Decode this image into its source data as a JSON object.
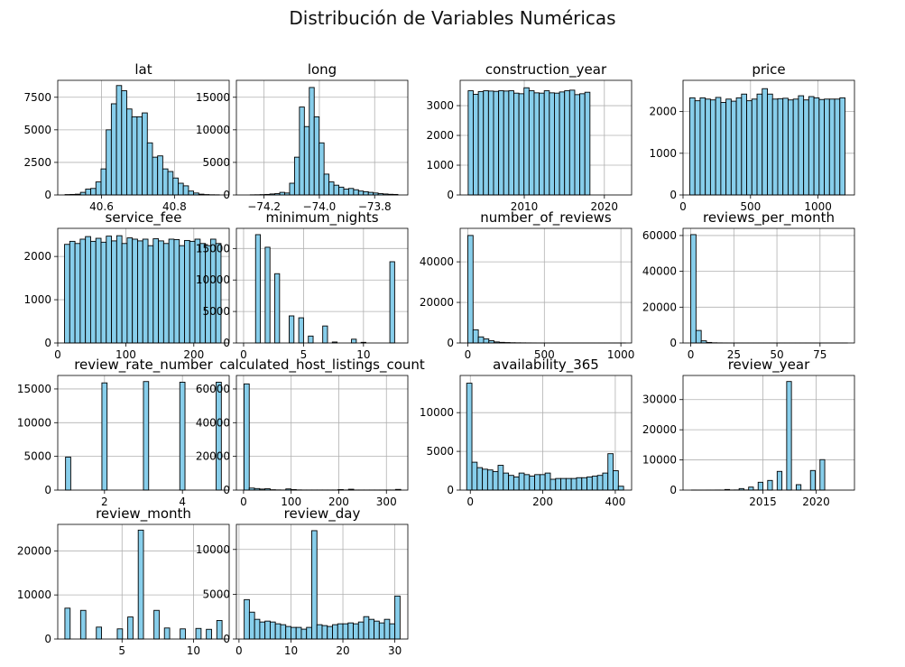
{
  "figure": {
    "title": "Distribución de Variables Numéricas",
    "bar_color": "#87ceeb",
    "edge_color": "#000000",
    "grid_color": "#b0b0b0"
  },
  "chart_data": [
    {
      "type": "bar",
      "title": "lat",
      "grid": true,
      "xlim": [
        40.48,
        40.95
      ],
      "ylim": [
        0,
        8800
      ],
      "xticks": [
        40.6,
        40.8
      ],
      "xtick_labels": [
        "40.6",
        "40.8"
      ],
      "yticks": [
        0,
        2500,
        5000,
        7500
      ],
      "ytick_labels": [
        "0",
        "2500",
        "5000",
        "7500"
      ],
      "bins": {
        "start": 40.5,
        "width": 0.0141,
        "values": [
          30,
          40,
          60,
          200,
          450,
          500,
          1000,
          2000,
          5000,
          7000,
          8400,
          8000,
          6600,
          6000,
          6000,
          6300,
          4000,
          2900,
          3000,
          2000,
          1800,
          1300,
          900,
          700,
          300,
          150,
          60,
          30,
          15,
          10
        ]
      }
    },
    {
      "type": "bar",
      "title": "long",
      "grid": true,
      "xlim": [
        -74.3,
        -73.68
      ],
      "ylim": [
        0,
        17600
      ],
      "xticks": [
        -74.2,
        -74.0,
        -73.8
      ],
      "xtick_labels": [
        "−74.2",
        "−74.0",
        "−73.8"
      ],
      "yticks": [
        0,
        5000,
        10000,
        15000
      ],
      "ytick_labels": [
        "0",
        "5000",
        "10000",
        "15000"
      ],
      "bins": {
        "start": -74.25,
        "width": 0.0178,
        "values": [
          20,
          30,
          50,
          80,
          150,
          200,
          400,
          300,
          1800,
          5800,
          13500,
          10500,
          16500,
          12000,
          8000,
          3200,
          2000,
          1500,
          1200,
          900,
          1000,
          800,
          600,
          500,
          400,
          300,
          200,
          150,
          100,
          80
        ]
      }
    },
    {
      "type": "bar",
      "title": "construction_year",
      "grid": true,
      "xlim": [
        2002,
        2023.4
      ],
      "ylim": [
        0,
        3850
      ],
      "xticks": [
        2010,
        2020
      ],
      "xtick_labels": [
        "2010",
        "2020"
      ],
      "yticks": [
        0,
        1000,
        2000,
        3000
      ],
      "ytick_labels": [
        "0",
        "1000",
        "2000",
        "3000"
      ],
      "bins": {
        "start": 2003,
        "width": 0.6333,
        "values": [
          3500,
          3380,
          3470,
          3500,
          3490,
          3480,
          3500,
          3490,
          3500,
          3420,
          3400,
          3600,
          3500,
          3430,
          3420,
          3500,
          3430,
          3420,
          3460,
          3500,
          3520,
          3370,
          3400,
          3450
        ]
      }
    },
    {
      "type": "bar",
      "title": "price",
      "grid": true,
      "xlim": [
        0,
        1270
      ],
      "ylim": [
        0,
        2750
      ],
      "xticks": [
        0,
        500,
        1000
      ],
      "xtick_labels": [
        "0",
        "500",
        "1000"
      ],
      "yticks": [
        0,
        1000,
        2000
      ],
      "ytick_labels": [
        "0",
        "1000",
        "2000"
      ],
      "bins": {
        "start": 50,
        "width": 38.33,
        "values": [
          2330,
          2260,
          2330,
          2300,
          2280,
          2340,
          2220,
          2300,
          2250,
          2330,
          2420,
          2260,
          2300,
          2420,
          2550,
          2420,
          2300,
          2310,
          2320,
          2280,
          2300,
          2380,
          2280,
          2360,
          2330,
          2290,
          2300,
          2300,
          2300,
          2330
        ]
      }
    },
    {
      "type": "bar",
      "title": "service_fee",
      "grid": true,
      "xlim": [
        0,
        252
      ],
      "ylim": [
        0,
        2650
      ],
      "xticks": [
        0,
        100,
        200
      ],
      "xtick_labels": [
        "0",
        "100",
        "200"
      ],
      "yticks": [
        0,
        1000,
        2000
      ],
      "ytick_labels": [
        "0",
        "1000",
        "2000"
      ],
      "bins": {
        "start": 10,
        "width": 7.667,
        "values": [
          2280,
          2350,
          2300,
          2400,
          2460,
          2350,
          2420,
          2330,
          2470,
          2360,
          2480,
          2300,
          2430,
          2400,
          2360,
          2400,
          2250,
          2410,
          2360,
          2300,
          2400,
          2390,
          2250,
          2370,
          2350,
          2400,
          2300,
          2250,
          2400,
          2300
        ]
      }
    },
    {
      "type": "bar",
      "title": "minimum_nights",
      "grid": true,
      "xlim": [
        -0.6,
        13.7
      ],
      "ylim": [
        0,
        18200
      ],
      "xticks": [
        0,
        5,
        10
      ],
      "xtick_labels": [
        "0",
        "5",
        "10"
      ],
      "yticks": [
        0,
        5000,
        10000,
        15000
      ],
      "ytick_labels": [
        "0",
        "5000",
        "10000",
        "15000"
      ],
      "bins": {
        "start": 1,
        "width": 0.4,
        "values": [
          17200,
          0,
          15200,
          0,
          11000,
          0,
          0,
          4300,
          0,
          4000,
          0,
          1100,
          0,
          0,
          2700,
          0,
          150,
          0,
          0,
          0,
          600,
          0,
          100,
          0,
          0,
          0,
          0,
          0,
          12900,
          0
        ]
      }
    },
    {
      "type": "bar",
      "title": "number_of_reviews",
      "grid": true,
      "xlim": [
        -50,
        1070
      ],
      "ylim": [
        0,
        56500
      ],
      "xticks": [
        0,
        500,
        1000
      ],
      "xtick_labels": [
        "0",
        "500",
        "1000"
      ],
      "yticks": [
        0,
        20000,
        40000
      ],
      "ytick_labels": [
        "0",
        "20000",
        "40000"
      ],
      "bins": {
        "start": 0,
        "width": 34.33,
        "values": [
          53000,
          6500,
          3000,
          2000,
          1100,
          500,
          300,
          200,
          120,
          80,
          60,
          40,
          30,
          20,
          20,
          15,
          10,
          10,
          10,
          5,
          5,
          5,
          5,
          5,
          3,
          3,
          3,
          2,
          2,
          2
        ]
      }
    },
    {
      "type": "bar",
      "title": "reviews_per_month",
      "grid": true,
      "xlim": [
        -4.5,
        95
      ],
      "ylim": [
        0,
        64000
      ],
      "xticks": [
        0,
        25,
        50,
        75
      ],
      "xtick_labels": [
        "0",
        "25",
        "50",
        "75"
      ],
      "yticks": [
        0,
        20000,
        40000,
        60000
      ],
      "ytick_labels": [
        "0",
        "20000",
        "40000",
        "60000"
      ],
      "bins": {
        "start": 0,
        "width": 3.03,
        "values": [
          60500,
          7000,
          1200,
          300,
          100,
          50,
          30,
          20,
          10,
          10,
          5,
          5,
          5,
          3,
          3,
          2,
          2,
          2,
          2,
          1,
          1,
          1,
          1,
          1,
          1,
          1,
          1,
          1,
          1,
          1
        ]
      }
    },
    {
      "type": "bar",
      "title": "review_rate_number",
      "grid": true,
      "xlim": [
        0.8,
        5.2
      ],
      "ylim": [
        0,
        17000
      ],
      "xticks": [
        2,
        4
      ],
      "xtick_labels": [
        "2",
        "4"
      ],
      "yticks": [
        0,
        5000,
        10000,
        15000
      ],
      "ytick_labels": [
        "0",
        "5000",
        "10000",
        "15000"
      ],
      "bins": {
        "start": 1,
        "width": 0.1333,
        "values": [
          4900,
          0,
          0,
          0,
          0,
          0,
          0,
          15900,
          0,
          0,
          0,
          0,
          0,
          0,
          0,
          16100,
          0,
          0,
          0,
          0,
          0,
          0,
          16000,
          0,
          0,
          0,
          0,
          0,
          0,
          16000
        ]
      }
    },
    {
      "type": "bar",
      "title": "calculated_host_listings_count",
      "grid": true,
      "xlim": [
        -15,
        345
      ],
      "ylim": [
        0,
        68000
      ],
      "xticks": [
        0,
        100,
        200,
        300
      ],
      "xtick_labels": [
        "0",
        "100",
        "200",
        "300"
      ],
      "yticks": [
        0,
        20000,
        40000,
        60000
      ],
      "ytick_labels": [
        "0",
        "20000",
        "40000",
        "60000"
      ],
      "bins": {
        "start": 1,
        "width": 10.97,
        "values": [
          63000,
          1200,
          900,
          600,
          800,
          200,
          100,
          50,
          700,
          300,
          100,
          50,
          50,
          50,
          50,
          50,
          50,
          50,
          300,
          50,
          500,
          50,
          50,
          50,
          50,
          50,
          50,
          50,
          50,
          400
        ]
      }
    },
    {
      "type": "bar",
      "title": "availability_365",
      "grid": true,
      "xlim": [
        -28,
        445
      ],
      "ylim": [
        0,
        14800
      ],
      "xticks": [
        0,
        200,
        400
      ],
      "xtick_labels": [
        "0",
        "200",
        "400"
      ],
      "yticks": [
        0,
        5000,
        10000
      ],
      "ytick_labels": [
        "0",
        "5000",
        "10000"
      ],
      "bins": {
        "start": -10,
        "width": 14.43,
        "values": [
          13800,
          3600,
          2900,
          2700,
          2600,
          2400,
          3200,
          2200,
          1900,
          1700,
          2200,
          2000,
          1800,
          2000,
          2000,
          2200,
          1400,
          1500,
          1500,
          1500,
          1500,
          1600,
          1600,
          1700,
          1800,
          1900,
          2200,
          4700,
          2500,
          500
        ]
      }
    },
    {
      "type": "bar",
      "title": "review_year",
      "grid": true,
      "xlim": [
        2007.5,
        2023.6
      ],
      "ylim": [
        0,
        38000
      ],
      "xticks": [
        2015,
        2020
      ],
      "xtick_labels": [
        "2015",
        "2020"
      ],
      "yticks": [
        0,
        10000,
        20000,
        30000
      ],
      "ytick_labels": [
        "0",
        "10000",
        "20000",
        "30000"
      ],
      "bins": {
        "start": 2008.3,
        "width": 0.4467,
        "values": [
          20,
          10,
          10,
          20,
          20,
          30,
          20,
          200,
          30,
          50,
          500,
          50,
          1000,
          50,
          2600,
          0,
          3200,
          0,
          6200,
          0,
          36000,
          0,
          1800,
          0,
          0,
          6500,
          0,
          10100,
          0,
          0
        ]
      }
    },
    {
      "type": "bar",
      "title": "review_month",
      "grid": true,
      "xlim": [
        0.5,
        12.5
      ],
      "ylim": [
        0,
        26000
      ],
      "xticks": [
        5,
        10
      ],
      "xtick_labels": [
        "5",
        "10"
      ],
      "yticks": [
        0,
        10000,
        20000
      ],
      "ytick_labels": [
        "0",
        "10000",
        "20000"
      ],
      "bins": {
        "start": 1,
        "width": 0.3667,
        "values": [
          7000,
          0,
          0,
          6500,
          0,
          0,
          2700,
          0,
          0,
          0,
          2300,
          0,
          5000,
          0,
          24700,
          0,
          0,
          6500,
          0,
          2500,
          0,
          0,
          2300,
          0,
          0,
          2400,
          0,
          2200,
          0,
          4200
        ]
      }
    },
    {
      "type": "bar",
      "title": "review_day",
      "grid": true,
      "xlim": [
        -0.5,
        32.5
      ],
      "ylim": [
        0,
        12800
      ],
      "xticks": [
        0,
        10,
        20,
        30
      ],
      "xtick_labels": [
        "0",
        "10",
        "20",
        "30"
      ],
      "yticks": [
        0,
        5000,
        10000
      ],
      "ytick_labels": [
        "0",
        "5000",
        "10000"
      ],
      "bins": {
        "start": 1,
        "width": 1.0,
        "values": [
          4400,
          3000,
          2200,
          1900,
          2000,
          1900,
          1700,
          1600,
          1400,
          1300,
          1300,
          1100,
          1300,
          12100,
          1600,
          1500,
          1400,
          1600,
          1700,
          1700,
          1800,
          1700,
          1900,
          2500,
          2200,
          2000,
          1800,
          2200,
          1700,
          4800
        ]
      }
    }
  ]
}
